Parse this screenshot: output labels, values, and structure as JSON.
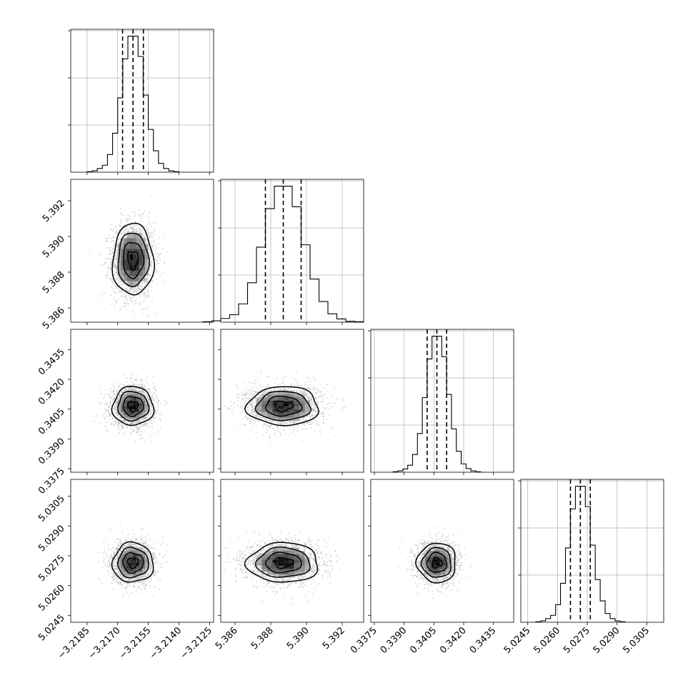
{
  "chart_data": {
    "type": "corner",
    "grid": true,
    "parameters": [
      {
        "id": "p0",
        "range": [
          -3.2193,
          -3.2123
        ],
        "ticks": [
          -3.2185,
          -3.217,
          -3.2155,
          -3.214,
          -3.2125
        ],
        "tick_labels": [
          "−3.2185",
          "−3.2170",
          "−3.2155",
          "−3.2140",
          "−3.2125"
        ],
        "quantiles": [
          -3.21676,
          -3.21625,
          -3.21574
        ],
        "median": -3.21625,
        "sigma": 0.0005
      },
      {
        "id": "p1",
        "range": [
          5.3852,
          5.3932
        ],
        "ticks": [
          5.386,
          5.388,
          5.39,
          5.392
        ],
        "tick_labels": [
          "5.386",
          "5.388",
          "5.390",
          "5.392"
        ],
        "quantiles": [
          5.3877,
          5.3887,
          5.3897
        ],
        "median": 5.3887,
        "sigma": 0.001
      },
      {
        "id": "p2",
        "range": [
          0.33732,
          0.34452
        ],
        "ticks": [
          0.3375,
          0.339,
          0.3405,
          0.342,
          0.3435
        ],
        "tick_labels": [
          "0.3375",
          "0.3390",
          "0.3405",
          "0.3420",
          "0.3435"
        ],
        "quantiles": [
          0.34016,
          0.34065,
          0.34114
        ],
        "median": 0.34065,
        "sigma": 0.00049
      },
      {
        "id": "p3",
        "range": [
          5.02415,
          5.03135
        ],
        "ticks": [
          5.0245,
          5.026,
          5.0275,
          5.029,
          5.0305
        ],
        "tick_labels": [
          "5.0245",
          "5.0260",
          "5.0275",
          "5.0290",
          "5.0305"
        ],
        "quantiles": [
          5.02665,
          5.02715,
          5.02765
        ],
        "median": 5.02715,
        "sigma": 0.0005
      }
    ],
    "histograms": [
      {
        "param": "p0",
        "counts": [
          1,
          3,
          8,
          15,
          38,
          84,
          160,
          244,
          293,
          293,
          249,
          166,
          92,
          46,
          19,
          8,
          3,
          1
        ]
      },
      {
        "param": "p1",
        "counts": [
          1,
          3,
          8,
          16,
          39,
          84,
          160,
          242,
          290,
          290,
          246,
          165,
          92,
          44,
          18,
          7,
          2,
          1
        ]
      },
      {
        "param": "p2",
        "counts": [
          1,
          3,
          7,
          15,
          38,
          83,
          160,
          243,
          292,
          292,
          248,
          167,
          93,
          45,
          18,
          8,
          3,
          1
        ]
      },
      {
        "param": "p3",
        "counts": [
          1,
          3,
          8,
          15,
          38,
          84,
          160,
          244,
          293,
          293,
          249,
          166,
          92,
          46,
          19,
          8,
          3,
          1
        ]
      }
    ],
    "contour_levels_sigma": [
      0.5,
      1.0,
      1.5,
      2.0
    ]
  },
  "colors": {
    "hist_line": "#000000",
    "contour": "#000000",
    "scatter": "#9e9e9e",
    "density_dark": "#111111",
    "grid": "#b0b0b0"
  }
}
